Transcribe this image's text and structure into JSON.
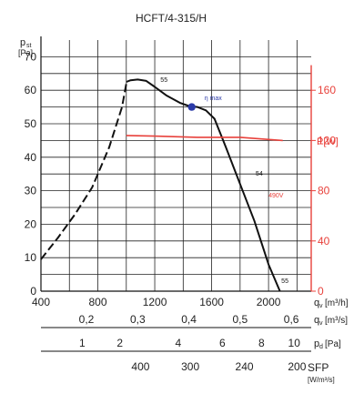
{
  "chart_data": {
    "type": "line",
    "title": "HCFT/4-315/H",
    "x_axis": {
      "label": "q",
      "subscript": "v",
      "unit": "[m³/h]",
      "range": [
        400,
        2300
      ],
      "ticks": [
        400,
        800,
        1200,
        1600,
        2000
      ]
    },
    "y_axis_left": {
      "label": "p",
      "subscript": "st",
      "unit": "[Pa]",
      "range": [
        0,
        75
      ],
      "ticks": [
        0,
        10,
        20,
        30,
        40,
        50,
        60,
        70
      ]
    },
    "y_axis_right": {
      "label": "P[W]",
      "color": "#e8413b",
      "range": [
        0,
        200
      ],
      "ticks": [
        0,
        40,
        80,
        120,
        160
      ]
    },
    "grid": true,
    "extra_scales": [
      {
        "label": "q",
        "subscript": "v",
        "unit": "[m³/s]",
        "values": [
          {
            "text": "0,2",
            "x_m3h": 720
          },
          {
            "text": "0,3",
            "x_m3h": 1080
          },
          {
            "text": "0,4",
            "x_m3h": 1440
          },
          {
            "text": "0,5",
            "x_m3h": 1800
          },
          {
            "text": "0,6",
            "x_m3h": 2160
          }
        ]
      },
      {
        "label": "p",
        "subscript": "d",
        "unit": "[Pa]",
        "values": [
          {
            "text": "1",
            "x_m3h": 690
          },
          {
            "text": "2",
            "x_m3h": 955
          },
          {
            "text": "4",
            "x_m3h": 1365
          },
          {
            "text": "6",
            "x_m3h": 1675
          },
          {
            "text": "8",
            "x_m3h": 1950
          },
          {
            "text": "10",
            "x_m3h": 2180
          }
        ]
      },
      {
        "label": "SFP",
        "unit": "[W/m³/s]",
        "values": [
          {
            "text": "400",
            "x_m3h": 1100
          },
          {
            "text": "300",
            "x_m3h": 1450
          },
          {
            "text": "240",
            "x_m3h": 1830
          },
          {
            "text": "200",
            "x_m3h": 2200
          }
        ]
      }
    ],
    "series": [
      {
        "name": "pressure-unstable",
        "axis": "left",
        "style": "dashed",
        "color": "#111111",
        "x": [
          400,
          520,
          640,
          760,
          880,
          970,
          1000
        ],
        "y": [
          9.5,
          16,
          23,
          31,
          43,
          55,
          62
        ]
      },
      {
        "name": "pressure-stable",
        "axis": "left",
        "style": "solid",
        "color": "#111111",
        "x": [
          1000,
          1030,
          1080,
          1140,
          1200,
          1280,
          1380,
          1440,
          1500,
          1560,
          1620,
          1700,
          1800,
          1900,
          2000,
          2080
        ],
        "y": [
          62.5,
          63,
          63.2,
          62.8,
          61,
          58.5,
          56.2,
          55.3,
          55,
          54,
          51.5,
          43,
          32,
          21,
          8,
          0
        ]
      },
      {
        "name": "power",
        "axis": "right",
        "style": "solid",
        "color": "#e8413b",
        "x": [
          1000,
          1200,
          1500,
          1800,
          2100
        ],
        "y": [
          124,
          123.5,
          122.5,
          122.5,
          120
        ]
      }
    ],
    "points": [
      {
        "name": "eta-max",
        "x": 1460,
        "y": 55,
        "color": "#2b3aa8"
      }
    ],
    "annotations": [
      {
        "text": "55",
        "x": 1240,
        "y": 62.5,
        "color": "#111111"
      },
      {
        "text": "η max",
        "x": 1550,
        "y": 57,
        "color": "#2b3aa8"
      },
      {
        "text": "54",
        "x": 1910,
        "y": 34.5,
        "color": "#111111"
      },
      {
        "text": "490V",
        "x": 2000,
        "y": 28,
        "color": "#e8413b"
      },
      {
        "text": "55",
        "x": 2090,
        "y": 2.5,
        "color": "#111111"
      }
    ]
  }
}
